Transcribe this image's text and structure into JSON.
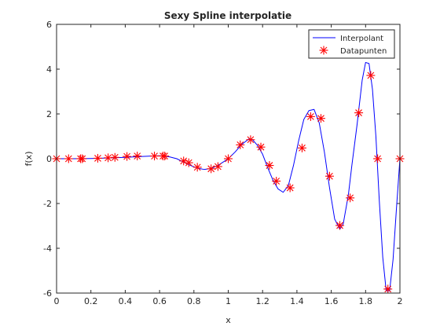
{
  "chart_data": {
    "type": "line",
    "title": "Sexy Spline interpolatie",
    "xlabel": "x",
    "ylabel": "f(x)",
    "xlim": [
      0,
      2
    ],
    "ylim": [
      -6,
      6
    ],
    "xticks": [
      "0",
      "0.2",
      "0.4",
      "0.6",
      "0.8",
      "1",
      "1.2",
      "1.4",
      "1.6",
      "1.8",
      "2"
    ],
    "yticks": [
      "-6",
      "-4",
      "-2",
      "0",
      "2",
      "4",
      "6"
    ],
    "grid": false,
    "legend_position": "top-right",
    "series": [
      {
        "name": "Interpolant",
        "style": "line",
        "color": "#0000ff",
        "x": [
          0,
          0.1,
          0.2,
          0.3,
          0.4,
          0.5,
          0.55,
          0.6,
          0.63,
          0.66,
          0.7,
          0.74,
          0.78,
          0.82,
          0.86,
          0.9,
          0.94,
          0.97,
          1.0,
          1.04,
          1.08,
          1.12,
          1.14,
          1.17,
          1.2,
          1.23,
          1.26,
          1.29,
          1.32,
          1.35,
          1.38,
          1.41,
          1.44,
          1.47,
          1.5,
          1.53,
          1.56,
          1.59,
          1.62,
          1.65,
          1.67,
          1.7,
          1.72,
          1.75,
          1.78,
          1.8,
          1.82,
          1.84,
          1.86,
          1.88,
          1.9,
          1.92,
          1.94,
          1.96,
          1.98,
          2.0
        ],
        "y": [
          0,
          0,
          0.01,
          0.03,
          0.06,
          0.1,
          0.12,
          0.13,
          0.12,
          0.08,
          0.0,
          -0.15,
          -0.3,
          -0.42,
          -0.48,
          -0.44,
          -0.3,
          -0.15,
          0.0,
          0.3,
          0.65,
          0.88,
          0.86,
          0.6,
          0.2,
          -0.4,
          -0.95,
          -1.35,
          -1.5,
          -1.2,
          -0.3,
          0.8,
          1.75,
          2.15,
          2.2,
          1.6,
          0.3,
          -1.3,
          -2.7,
          -3.15,
          -2.9,
          -1.6,
          -0.3,
          1.5,
          3.5,
          4.3,
          4.25,
          3.1,
          1.0,
          -1.9,
          -4.4,
          -5.9,
          -5.9,
          -4.5,
          -2.2,
          0.0
        ]
      },
      {
        "name": "Datapunten",
        "style": "markers",
        "marker": "asterisk",
        "color": "#ff0000",
        "x": [
          0,
          0.07,
          0.14,
          0.15,
          0.24,
          0.3,
          0.34,
          0.41,
          0.47,
          0.57,
          0.62,
          0.63,
          0.74,
          0.77,
          0.82,
          0.9,
          0.94,
          1.0,
          1.07,
          1.13,
          1.19,
          1.24,
          1.28,
          1.36,
          1.43,
          1.48,
          1.54,
          1.59,
          1.65,
          1.71,
          1.76,
          1.83,
          1.87,
          1.93,
          2.0
        ],
        "y": [
          0,
          0,
          0,
          0,
          0.02,
          0.04,
          0.06,
          0.1,
          0.12,
          0.12,
          0.12,
          0.12,
          -0.1,
          -0.18,
          -0.38,
          -0.45,
          -0.35,
          0.0,
          0.62,
          0.85,
          0.52,
          -0.3,
          -1.0,
          -1.3,
          0.48,
          1.88,
          1.8,
          -0.78,
          -2.98,
          -1.75,
          2.05,
          3.72,
          0.0,
          -5.82,
          0.0
        ]
      }
    ]
  }
}
